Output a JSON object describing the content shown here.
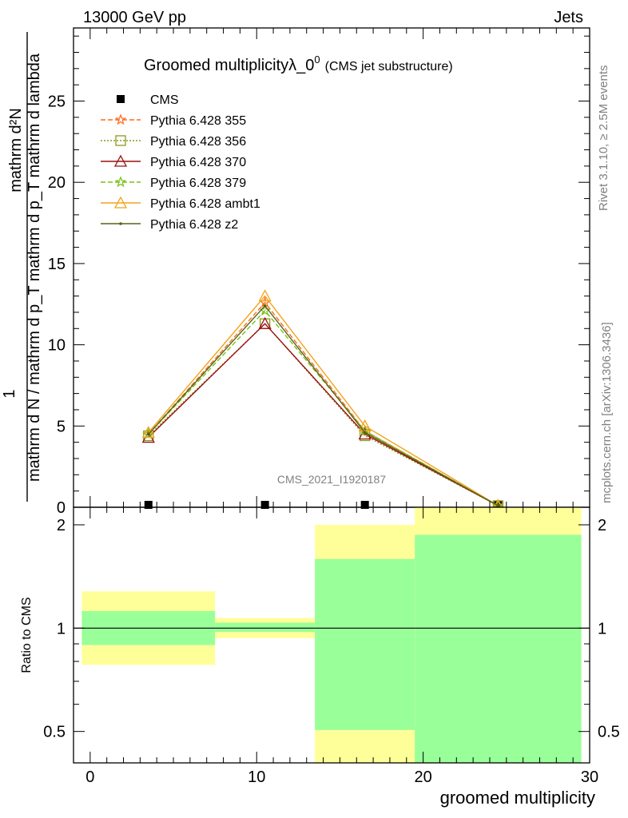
{
  "header": {
    "left": "13000 GeV pp",
    "right": "Jets"
  },
  "side": {
    "rivet": "Rivet 3.1.10, ≥ 2.5M events",
    "mcplots": "mcplots.cern.ch [arXiv:1306.3436]"
  },
  "chart_data": [
    {
      "type": "line",
      "title": "Groomed multiplicityλ_0",
      "title_sup": "0",
      "subtitle": "(CMS jet substructure)",
      "watermark": "CMS_2021_I1920187",
      "ylabel_top": "1",
      "ylabel_num": "mathrm d²N",
      "ylabel_den": "mathrm d N / mathrm d p_T mathrm d p_T mathrm d lambda",
      "xlim": [
        -1,
        30
      ],
      "ylim": [
        0,
        29.5
      ],
      "yticks": [
        5,
        10,
        15,
        20,
        25
      ],
      "ytick_labels": [
        "5",
        "10",
        "15",
        "20",
        "25"
      ],
      "bottom_partial_label": "0",
      "series": [
        {
          "name": "CMS",
          "color": "#000000",
          "marker": "square",
          "x": [
            3.5,
            10.5,
            16.5,
            24.5
          ],
          "y": [
            0.05,
            0.1,
            0.05,
            0.02
          ]
        },
        {
          "name": "Pythia 6.428 355",
          "color": "#ff6a1f",
          "marker": "star",
          "dash": "dashed",
          "x": [
            3.5,
            10.5,
            16.5,
            24.5
          ],
          "y": [
            4.5,
            12.6,
            4.7,
            0.1
          ]
        },
        {
          "name": "Pythia 6.428 356",
          "color": "#8c9a1d",
          "marker": "square-open",
          "dash": "dotted",
          "x": [
            3.5,
            10.5,
            16.5,
            24.5
          ],
          "y": [
            4.4,
            11.3,
            4.4,
            0.1
          ]
        },
        {
          "name": "Pythia 6.428 370",
          "color": "#9a1010",
          "marker": "triangle-open",
          "dash": "solid",
          "x": [
            3.5,
            10.5,
            16.5,
            24.5
          ],
          "y": [
            4.3,
            11.3,
            4.5,
            0.1
          ]
        },
        {
          "name": "Pythia 6.428 379",
          "color": "#7cbf1c",
          "marker": "star",
          "dash": "dashed",
          "x": [
            3.5,
            10.5,
            16.5,
            24.5
          ],
          "y": [
            4.5,
            12.1,
            4.7,
            0.1
          ]
        },
        {
          "name": "Pythia 6.428 ambt1",
          "color": "#f2a31b",
          "marker": "triangle-open",
          "dash": "solid",
          "x": [
            3.5,
            10.5,
            16.5,
            24.5
          ],
          "y": [
            4.6,
            13.0,
            5.0,
            0.1
          ]
        },
        {
          "name": "Pythia 6.428 z2",
          "color": "#5a6314",
          "marker": "dot",
          "dash": "solid",
          "x": [
            3.5,
            10.5,
            16.5,
            24.5
          ],
          "y": [
            4.5,
            12.4,
            4.6,
            0.1
          ]
        }
      ]
    },
    {
      "type": "area",
      "ylabel": "Ratio to CMS",
      "xlabel": "groomed multiplicity",
      "xlim": [
        -1,
        30
      ],
      "ylim": [
        0.405,
        2.25
      ],
      "log_y": true,
      "yticks": [
        0.5,
        1,
        2
      ],
      "ytick_labels": [
        "0.5",
        "1",
        "2"
      ],
      "xticks": [
        0,
        10,
        20,
        30
      ],
      "xtick_labels": [
        "0",
        "10",
        "20",
        "30"
      ],
      "reference_line": 1,
      "bins": [
        {
          "x0": -0.5,
          "x1": 7.5,
          "stat": [
            0.893,
            1.121
          ],
          "total": [
            0.782,
            1.28
          ]
        },
        {
          "x0": 7.5,
          "x1": 13.5,
          "stat": [
            0.975,
            1.037
          ],
          "total": [
            0.935,
            1.07
          ]
        },
        {
          "x0": 13.5,
          "x1": 19.5,
          "stat": [
            0.505,
            1.59
          ],
          "total": [
            0.405,
            2.0
          ]
        },
        {
          "x0": 19.5,
          "x1": 29.5,
          "stat": [
            0.405,
            1.87
          ],
          "total": [
            0.405,
            2.25
          ]
        }
      ],
      "band_colors": {
        "stat": "#99ff99",
        "total": "#ffff99"
      }
    }
  ]
}
